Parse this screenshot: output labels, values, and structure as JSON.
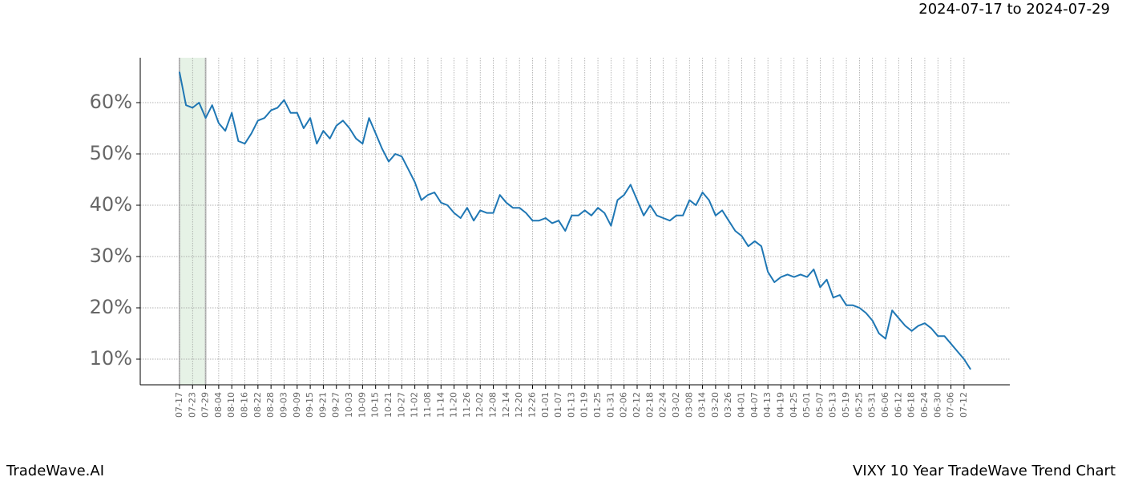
{
  "chart_data": {
    "type": "line",
    "subtitle": "2024-07-17 to 2024-07-29",
    "brand": "TradeWave.AI",
    "title": "VIXY 10 Year TradeWave Trend Chart",
    "highlight": {
      "start": "07-17",
      "end": "07-29",
      "color": "#d5ead5"
    },
    "categories": [
      "07-17",
      null,
      "07-23",
      null,
      "07-29",
      null,
      "08-04",
      null,
      "08-10",
      null,
      "08-16",
      null,
      "08-22",
      null,
      "08-28",
      null,
      "09-03",
      null,
      "09-09",
      null,
      "09-15",
      null,
      "09-21",
      null,
      "09-27",
      null,
      "10-03",
      null,
      "10-09",
      null,
      "10-15",
      null,
      "10-21",
      null,
      "10-27",
      null,
      "11-02",
      null,
      "11-08",
      null,
      "11-14",
      null,
      "11-20",
      null,
      "11-26",
      null,
      "12-02",
      null,
      "12-08",
      null,
      "12-14",
      null,
      "12-20",
      null,
      "12-26",
      null,
      "01-01",
      null,
      "01-07",
      null,
      "01-13",
      null,
      "01-19",
      null,
      "01-25",
      null,
      "01-31",
      null,
      "02-06",
      null,
      "02-12",
      null,
      "02-18",
      null,
      "02-24",
      null,
      "03-02",
      null,
      "03-08",
      null,
      "03-14",
      null,
      "03-20",
      null,
      "03-26",
      null,
      "04-01",
      null,
      "04-07",
      null,
      "04-13",
      null,
      "04-19",
      null,
      "04-25",
      null,
      "05-01",
      null,
      "05-07",
      null,
      "05-13",
      null,
      "05-19",
      null,
      "05-25",
      null,
      "05-31",
      null,
      "06-06",
      null,
      "06-12",
      null,
      "06-18",
      null,
      "06-24",
      null,
      "06-30",
      null,
      "07-06",
      null,
      "07-12",
      null
    ],
    "series": [
      {
        "name": "VIXY",
        "color": "#1f77b4",
        "values": [
          66,
          59.5,
          59,
          60,
          57,
          59.5,
          56,
          54.5,
          58,
          52.5,
          52,
          54,
          56.5,
          57,
          58.5,
          59,
          60.5,
          58,
          58,
          55,
          57,
          52,
          54.5,
          53,
          55.5,
          56.5,
          55,
          53,
          52,
          57,
          54,
          51,
          48.5,
          50,
          49.5,
          47,
          44.5,
          41,
          42,
          42.5,
          40.5,
          40,
          38.5,
          37.5,
          39.5,
          37,
          39,
          38.5,
          38.5,
          42,
          40.5,
          39.5,
          39.5,
          38.5,
          37,
          37,
          37.5,
          36.5,
          37,
          35,
          38,
          38,
          39,
          38,
          39.5,
          38.5,
          36,
          41,
          42,
          44,
          41,
          38,
          40,
          38,
          37.5,
          37,
          38,
          38,
          41,
          40,
          42.5,
          41,
          38,
          39,
          37,
          35,
          34,
          32,
          33,
          32,
          27,
          25,
          26,
          26.5,
          26,
          26.5,
          26,
          27.5,
          24,
          25.5,
          22,
          22.5,
          20.5,
          20.5,
          20,
          19,
          17.5,
          15,
          14,
          19.5,
          18,
          16.5,
          15.5,
          16.5,
          17,
          16,
          14.5,
          14.5,
          13,
          11.5,
          10,
          8
        ]
      }
    ],
    "ylim": [
      5,
      68.75
    ],
    "yticks": [
      {
        "value": 10,
        "label": "10%"
      },
      {
        "value": 20,
        "label": "20%"
      },
      {
        "value": 30,
        "label": "30%"
      },
      {
        "value": 40,
        "label": "40%"
      },
      {
        "value": 50,
        "label": "50%"
      },
      {
        "value": 60,
        "label": "60%"
      }
    ],
    "grid": true
  }
}
